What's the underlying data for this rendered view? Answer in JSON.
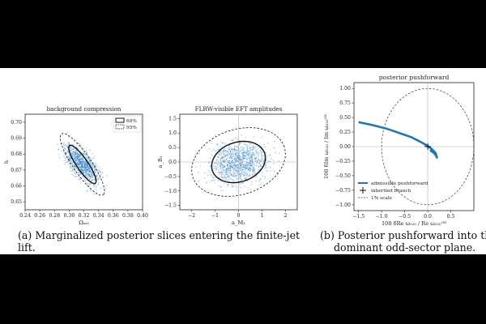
{
  "captions": {
    "left": "(a) Marginalized posterior slices entering the finite-jet lift.",
    "right_line1": "(b)  Posterior  pushforward  into  the",
    "right_line2": "dominant odd-sector plane."
  },
  "colors": {
    "scatter": "#3a87c8",
    "curve": "#1f77b4",
    "ellipse": "#111111",
    "ref_line": "#b0b0b0"
  },
  "chart_data": [
    {
      "type": "scatter",
      "title": "background compression",
      "xlabel": "Ωₘ₀",
      "ylabel": "h",
      "xlim": [
        0.24,
        0.4
      ],
      "ylim": [
        0.645,
        0.705
      ],
      "xticks": [
        "0.24",
        "0.26",
        "0.28",
        "0.30",
        "0.32",
        "0.34",
        "0.36",
        "0.38",
        "0.40"
      ],
      "yticks": [
        "0.65",
        "0.66",
        "0.67",
        "0.68",
        "0.69",
        "0.70"
      ],
      "center": [
        0.318,
        0.6735
      ],
      "legend": {
        "placement": "top-right",
        "entries": [
          {
            "label": "68%",
            "style": "solid"
          },
          {
            "label": "95%",
            "style": "dashed"
          }
        ]
      },
      "ellipses": [
        {
          "level": "68%",
          "rx": 0.036,
          "ry": 0.0058,
          "angle_deg": -60
        },
        {
          "level": "95%",
          "rx": 0.058,
          "ry": 0.0095,
          "angle_deg": -60
        }
      ],
      "points_n": 900
    },
    {
      "type": "scatter",
      "title": "FLRW-visible EFT amplitudes",
      "xlabel": "a_M₁",
      "ylabel": "a_B₁",
      "xlim": [
        -2.5,
        2.5
      ],
      "ylim": [
        -1.65,
        1.65
      ],
      "xticks": [
        "−2",
        "−1",
        "0",
        "1",
        "2"
      ],
      "yticks": [
        "−1.5",
        "−1.0",
        "−0.5",
        "0.0",
        "0.5",
        "1.0",
        "1.5"
      ],
      "center": [
        0.0,
        0.0
      ],
      "ref_lines": {
        "x": 0,
        "y": 0
      },
      "ellipses": [
        {
          "level": "68%",
          "rx": 1.2,
          "ry": 0.7,
          "angle_deg": 22
        },
        {
          "level": "95%",
          "rx": 2.1,
          "ry": 1.15,
          "angle_deg": 22
        }
      ],
      "points_n": 1100
    },
    {
      "type": "line",
      "title": "posterior pushforward",
      "xlabel": "100 δRe ω₂₂₀ / Re ω₂₂₀ᴳᴿ",
      "ylabel": "100 δIm ω₂₂₀ / Im ω₂₂₀ᴳᴿ",
      "xlim": [
        -1.6,
        1.0
      ],
      "ylim": [
        -1.1,
        1.1
      ],
      "xticks": [
        "−1.5",
        "−1.0",
        "−0.5",
        "0.0",
        "0.5"
      ],
      "yticks": [
        "−1.00",
        "−0.75",
        "−0.50",
        "−0.25",
        "0.00",
        "0.25",
        "0.50",
        "0.75",
        "1.00"
      ],
      "curve": {
        "name": "admissible pushforward",
        "x": [
          -1.5,
          -1.2,
          -0.9,
          -0.6,
          -0.35,
          -0.15,
          0.0,
          0.1,
          0.17,
          0.2,
          0.15,
          0.05
        ],
        "y": [
          0.42,
          0.37,
          0.31,
          0.23,
          0.16,
          0.08,
          0.01,
          -0.05,
          -0.11,
          -0.19,
          -0.12,
          -0.06
        ]
      },
      "marker": {
        "name": "inherited branch",
        "x": 0.0,
        "y": 0.0
      },
      "scale_circle": {
        "name": "1% scale",
        "radius": 1.0
      },
      "legend_entries": [
        "admissible pushforward",
        "inherited branch",
        "1% scale"
      ]
    }
  ]
}
